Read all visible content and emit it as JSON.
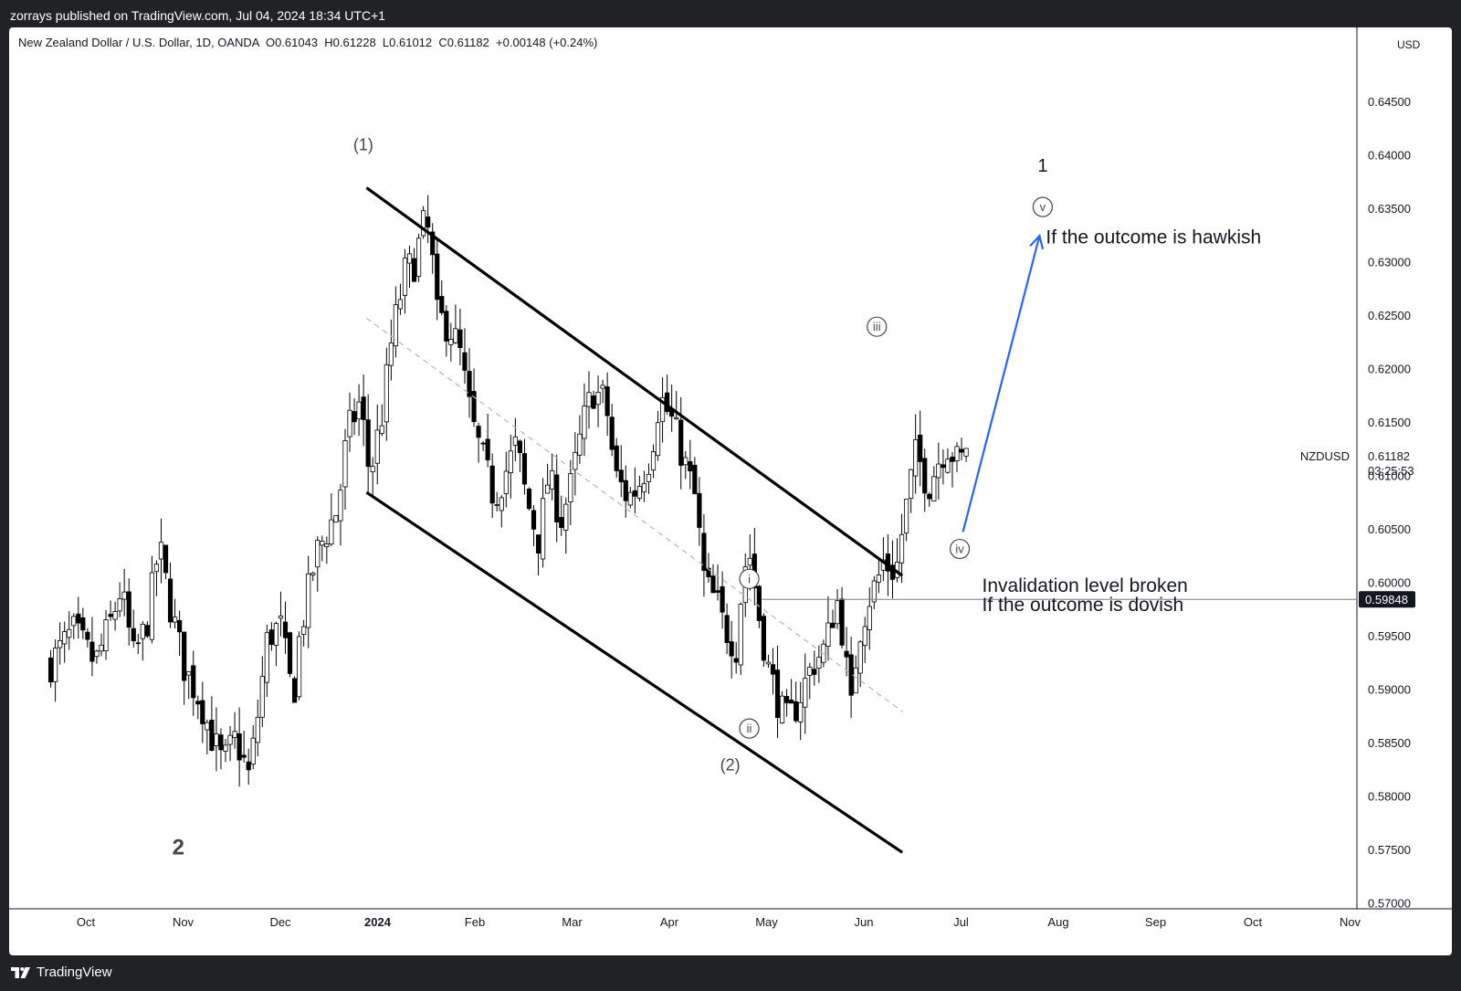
{
  "header": {
    "published_by": "zorrays published on TradingView.com, Jul 04, 2024 18:34 UTC+1"
  },
  "footer": {
    "brand": "TradingView"
  },
  "legend": {
    "symbol": "New Zealand Dollar / U.S. Dollar, 1D, OANDA",
    "open": "O0.61043",
    "high": "H0.61228",
    "low": "L0.61012",
    "close": "C0.61182",
    "change": "+0.00148 (+0.24%)"
  },
  "price_axis": {
    "currency": "USD"
  },
  "chart_data": {
    "type": "candlestick",
    "title": "New Zealand Dollar / U.S. Dollar, 1D, OANDA",
    "symbol": "NZDUSD",
    "ylim": [
      0.57,
      0.649
    ],
    "y_ticks": [
      "0.64500",
      "0.64000",
      "0.63500",
      "0.63000",
      "0.62500",
      "0.62000",
      "0.61500",
      "0.61000",
      "0.60500",
      "0.60000",
      "0.59500",
      "0.59000",
      "0.58500",
      "0.58000",
      "0.57500",
      "0.57000"
    ],
    "x_ticks": [
      "Oct",
      "Nov",
      "Dec",
      "2024",
      "Feb",
      "Mar",
      "Apr",
      "May",
      "Jun",
      "Jul",
      "Aug",
      "Sep",
      "Oct",
      "Nov"
    ],
    "last_price": {
      "value": "0.61182",
      "countdown": "03:25:53",
      "label": "NZDUSD"
    },
    "marked_level": {
      "value": 0.59848,
      "label": "0.59848",
      "from": "2024-04-30",
      "to": "end"
    },
    "close_path": [
      [
        "2023-09-20",
        0.5925
      ],
      [
        "2023-09-27",
        0.5955
      ],
      [
        "2023-10-04",
        0.5925
      ],
      [
        "2023-10-09",
        0.5965
      ],
      [
        "2023-10-12",
        0.5995
      ],
      [
        "2023-10-16",
        0.593
      ],
      [
        "2023-10-20",
        0.596
      ],
      [
        "2023-10-24",
        0.6035
      ],
      [
        "2023-10-27",
        0.5985
      ],
      [
        "2023-11-01",
        0.592
      ],
      [
        "2023-11-06",
        0.589
      ],
      [
        "2023-11-09",
        0.586
      ],
      [
        "2023-11-13",
        0.583
      ],
      [
        "2023-11-17",
        0.5855
      ],
      [
        "2023-11-21",
        0.582
      ],
      [
        "2023-11-23",
        0.5855
      ],
      [
        "2023-11-27",
        0.595
      ],
      [
        "2023-12-01",
        0.596
      ],
      [
        "2023-12-05",
        0.589
      ],
      [
        "2023-12-07",
        0.595
      ],
      [
        "2023-12-12",
        0.6025
      ],
      [
        "2023-12-15",
        0.6045
      ],
      [
        "2023-12-19",
        0.607
      ],
      [
        "2023-12-22",
        0.614
      ],
      [
        "2023-12-26",
        0.617
      ],
      [
        "2023-12-29",
        0.61
      ],
      [
        "2024-01-02",
        0.616
      ],
      [
        "2024-01-05",
        0.623
      ],
      [
        "2024-01-09",
        0.629
      ],
      [
        "2024-01-12",
        0.63
      ],
      [
        "2024-01-15",
        0.6335
      ],
      [
        "2024-01-17",
        0.6325
      ],
      [
        "2024-01-19",
        0.625
      ],
      [
        "2024-01-23",
        0.624
      ],
      [
        "2024-01-26",
        0.622
      ],
      [
        "2024-01-30",
        0.615
      ],
      [
        "2024-02-02",
        0.612
      ],
      [
        "2024-02-06",
        0.608
      ],
      [
        "2024-02-09",
        0.61
      ],
      [
        "2024-02-13",
        0.613
      ],
      [
        "2024-02-16",
        0.608
      ],
      [
        "2024-02-20",
        0.604
      ],
      [
        "2024-02-23",
        0.61
      ],
      [
        "2024-02-27",
        0.606
      ],
      [
        "2024-03-01",
        0.609
      ],
      [
        "2024-03-05",
        0.615
      ],
      [
        "2024-03-08",
        0.618
      ],
      [
        "2024-03-12",
        0.617
      ],
      [
        "2024-03-15",
        0.61
      ],
      [
        "2024-03-19",
        0.608
      ],
      [
        "2024-03-22",
        0.609
      ],
      [
        "2024-03-26",
        0.612
      ],
      [
        "2024-03-29",
        0.6175
      ],
      [
        "2024-04-02",
        0.615
      ],
      [
        "2024-04-05",
        0.612
      ],
      [
        "2024-04-09",
        0.608
      ],
      [
        "2024-04-12",
        0.6
      ],
      [
        "2024-04-16",
        0.598
      ],
      [
        "2024-04-18",
        0.596
      ],
      [
        "2024-04-22",
        0.594
      ],
      [
        "2024-04-24",
        0.601
      ],
      [
        "2024-04-26",
        0.603
      ],
      [
        "2024-04-29",
        0.597
      ],
      [
        "2024-05-02",
        0.592
      ],
      [
        "2024-05-06",
        0.588
      ],
      [
        "2024-05-08",
        0.587
      ],
      [
        "2024-05-10",
        0.588
      ],
      [
        "2024-05-14",
        0.591
      ],
      [
        "2024-05-16",
        0.5925
      ],
      [
        "2024-05-20",
        0.594
      ],
      [
        "2024-05-22",
        0.597
      ],
      [
        "2024-05-24",
        0.5985
      ],
      [
        "2024-05-28",
        0.588
      ],
      [
        "2024-05-30",
        0.595
      ],
      [
        "2024-06-03",
        0.599
      ],
      [
        "2024-06-05",
        0.6
      ],
      [
        "2024-06-07",
        0.602
      ],
      [
        "2024-06-11",
        0.601
      ],
      [
        "2024-06-13",
        0.605
      ],
      [
        "2024-06-17",
        0.612
      ],
      [
        "2024-06-19",
        0.611
      ],
      [
        "2024-06-21",
        0.609
      ],
      [
        "2024-06-25",
        0.612
      ],
      [
        "2024-06-27",
        0.613
      ],
      [
        "2024-07-01",
        0.611
      ],
      [
        "2024-07-03",
        0.613
      ]
    ],
    "annotations": [
      {
        "text": "(1)",
        "date": "2023-12-27",
        "price": 0.6405
      },
      {
        "text": "(2)",
        "date": "2024-04-20",
        "price": 0.5825
      },
      {
        "text": "2",
        "date": "2023-10-30",
        "price": 0.5746
      },
      {
        "text": "1",
        "date": "2024-07-27",
        "price": 0.6385
      },
      {
        "text": "If the outcome is hawkish",
        "date": "2024-07-28",
        "price": 0.6318
      },
      {
        "text": "Invalidation level broken",
        "date": "2024-07-08",
        "price": 0.5992
      },
      {
        "text": "If the outcome is dovish",
        "date": "2024-07-08",
        "price": 0.5974
      }
    ],
    "wave_labels": [
      {
        "text": "i",
        "date": "2024-04-26",
        "price": 0.6004
      },
      {
        "text": "ii",
        "date": "2024-04-26",
        "price": 0.5864
      },
      {
        "text": "iii",
        "date": "2024-06-05",
        "price": 0.624
      },
      {
        "text": "iv",
        "date": "2024-07-01",
        "price": 0.6032
      },
      {
        "text": "v",
        "date": "2024-07-27",
        "price": 0.6352
      }
    ],
    "channel_lines": [
      {
        "from": [
          "2023-12-28",
          0.637
        ],
        "to": [
          "2024-06-13",
          0.6007
        ]
      },
      {
        "from": [
          "2023-12-28",
          0.6085
        ],
        "to": [
          "2024-06-13",
          0.5748
        ]
      },
      {
        "from": [
          "2023-12-28",
          0.6248
        ],
        "to": [
          "2024-06-13",
          0.588
        ],
        "dashed": true
      }
    ],
    "projection": {
      "from": [
        "2024-07-02",
        0.6048
      ],
      "to": [
        "2024-07-26",
        0.6325
      ]
    },
    "colors": {
      "bull": "#ffffff",
      "bear": "#000000",
      "candle_outline": "#000000",
      "arrow": "#2962ff",
      "channel": "#000000",
      "dashed": "#b2b5be"
    }
  }
}
